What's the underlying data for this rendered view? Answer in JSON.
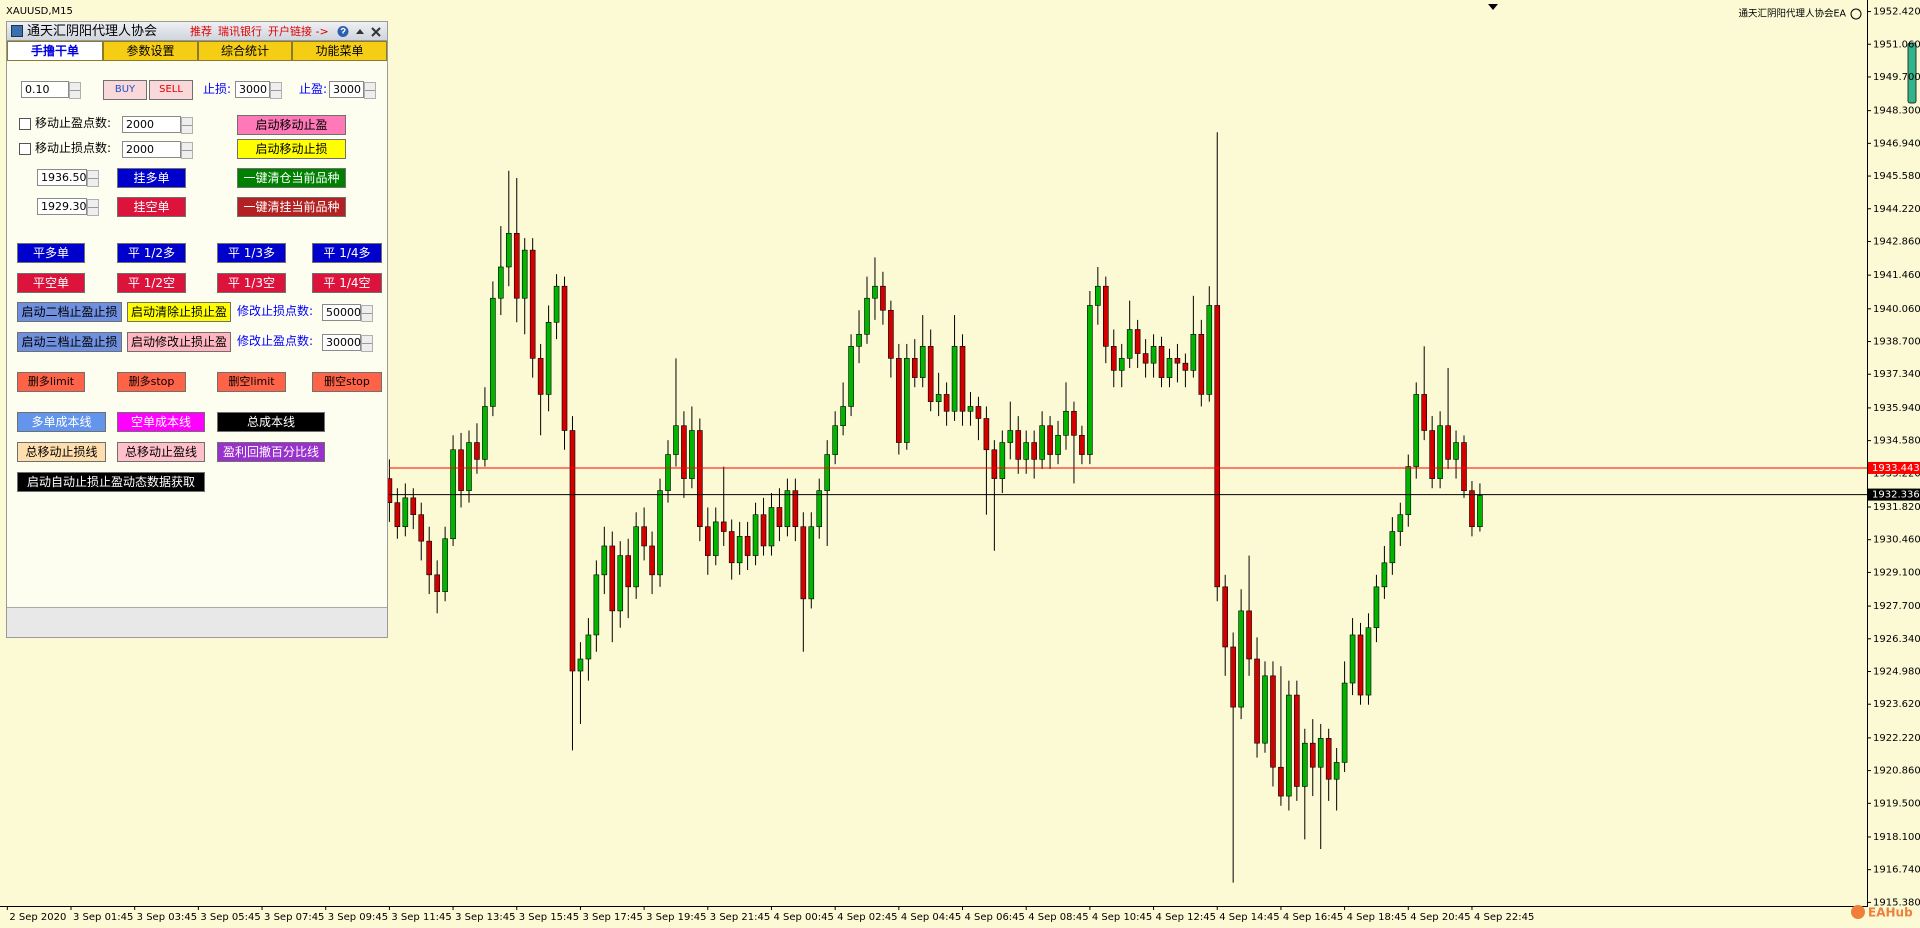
{
  "window": {
    "title": "XAUUSD,M15",
    "ea_label": "通天汇阴阳代理人协会EA",
    "watermark": "EAHub"
  },
  "panel": {
    "title": "通天汇阴阳代理人协会",
    "links": [
      "推荐",
      "瑞讯银行",
      "开户链接 ->"
    ],
    "tabs": [
      "手撸干单",
      "参数设置",
      "综合统计",
      "功能菜单"
    ],
    "lot": "0.10",
    "buy": "BUY",
    "sell": "SELL",
    "sl_label": "止损:",
    "sl": "3000",
    "tp_label": "止盈:",
    "tp": "3000",
    "trail_tp_label": "移动止盈点数:",
    "trail_tp": "2000",
    "trail_tp_button": "启动移动止盈",
    "trail_sl_label": "移动止损点数:",
    "trail_sl": "2000",
    "trail_sl_button": "启动移动止损",
    "buy_price": "1936.500",
    "buy_pending": "挂多单",
    "close_all": "一键清仓当前品种",
    "sell_price": "1929.300",
    "sell_pending": "挂空单",
    "clear_pending": "一键清挂当前品种",
    "close_buy": [
      "平多单",
      "平 1/2多",
      "平 1/3多",
      "平 1/4多"
    ],
    "close_sell": [
      "平空单",
      "平 1/2空",
      "平 1/3空",
      "平 1/4空"
    ],
    "level2": "启动二档止盈止损",
    "clear_sltp": "启动清除止损止盈",
    "mod_sl_label": "修改止损点数:",
    "mod_sl": "50000",
    "level3": "启动三档止盈止损",
    "modify_sltp": "启动修改止损止盈",
    "mod_tp_label": "修改止盈点数:",
    "mod_tp": "30000",
    "delete": [
      "删多limit",
      "删多stop",
      "删空limit",
      "删空stop"
    ],
    "lines_row1": [
      "多单成本线",
      "空单成本线",
      "总成本线"
    ],
    "lines_row2": [
      "总移动止损线",
      "总移动止盈线",
      "盈利回撤百分比线"
    ],
    "auto": "启动自动止损止盈动态数据获取"
  },
  "chart": {
    "type": "candlestick",
    "up_color": "#00b400",
    "down_color": "#d40000",
    "ylim": [
      1915.23,
      1952.9
    ],
    "yticks": [
      {
        "value": 1952.42,
        "label": "1952.420"
      },
      {
        "value": 1951.06,
        "label": "1951.060"
      },
      {
        "value": 1949.7,
        "label": "1949.700"
      },
      {
        "value": 1948.3,
        "label": "1948.300"
      },
      {
        "value": 1946.94,
        "label": "1946.940"
      },
      {
        "value": 1945.58,
        "label": "1945.580"
      },
      {
        "value": 1944.22,
        "label": "1944.220"
      },
      {
        "value": 1942.86,
        "label": "1942.860"
      },
      {
        "value": 1941.46,
        "label": "1941.460"
      },
      {
        "value": 1940.06,
        "label": "1940.060"
      },
      {
        "value": 1938.7,
        "label": "1938.700"
      },
      {
        "value": 1937.34,
        "label": "1937.340"
      },
      {
        "value": 1935.94,
        "label": "1935.940"
      },
      {
        "value": 1934.58,
        "label": "1934.580"
      },
      {
        "value": 1933.22,
        "label": "1933.220"
      },
      {
        "value": 1931.82,
        "label": "1931.820"
      },
      {
        "value": 1930.46,
        "label": "1930.460"
      },
      {
        "value": 1929.1,
        "label": "1929.100"
      },
      {
        "value": 1927.7,
        "label": "1927.700"
      },
      {
        "value": 1926.34,
        "label": "1926.340"
      },
      {
        "value": 1924.98,
        "label": "1924.980"
      },
      {
        "value": 1923.62,
        "label": "1923.620"
      },
      {
        "value": 1922.22,
        "label": "1922.220"
      },
      {
        "value": 1920.86,
        "label": "1920.860"
      },
      {
        "value": 1919.5,
        "label": "1919.500"
      },
      {
        "value": 1918.1,
        "label": "1918.100"
      },
      {
        "value": 1916.74,
        "label": "1916.740"
      },
      {
        "value": 1915.38,
        "label": "1915.380"
      }
    ],
    "x_labels": [
      "2 Sep 2020",
      "3 Sep 01:45",
      "3 Sep 03:45",
      "3 Sep 05:45",
      "3 Sep 07:45",
      "3 Sep 09:45",
      "3 Sep 11:45",
      "3 Sep 13:45",
      "3 Sep 15:45",
      "3 Sep 17:45",
      "3 Sep 19:45",
      "3 Sep 21:45",
      "4 Sep 00:45",
      "4 Sep 02:45",
      "4 Sep 04:45",
      "4 Sep 06:45",
      "4 Sep 08:45",
      "4 Sep 10:45",
      "4 Sep 12:45",
      "4 Sep 14:45",
      "4 Sep 16:45",
      "4 Sep 18:45",
      "4 Sep 20:45",
      "4 Sep 22:45"
    ],
    "lines": [
      {
        "value": 1933.443,
        "color": "#ff0000"
      },
      {
        "value": 1932.336,
        "color": "#000000"
      }
    ],
    "candles": [
      [
        1933.0,
        1933.8,
        1931.2,
        1932.0
      ],
      [
        1932.0,
        1932.6,
        1930.5,
        1931.0
      ],
      [
        1931.0,
        1932.8,
        1930.6,
        1932.2
      ],
      [
        1932.2,
        1932.6,
        1930.9,
        1931.5
      ],
      [
        1931.5,
        1932.0,
        1929.6,
        1930.4
      ],
      [
        1930.4,
        1931.0,
        1928.2,
        1929.0
      ],
      [
        1929.0,
        1929.6,
        1927.4,
        1928.3
      ],
      [
        1928.3,
        1931.0,
        1927.9,
        1930.5
      ],
      [
        1930.5,
        1934.8,
        1930.2,
        1934.2
      ],
      [
        1934.2,
        1934.9,
        1931.8,
        1932.5
      ],
      [
        1932.5,
        1935.0,
        1932.0,
        1934.5
      ],
      [
        1934.5,
        1935.3,
        1933.2,
        1933.8
      ],
      [
        1933.8,
        1936.8,
        1933.5,
        1936.0
      ],
      [
        1936.0,
        1941.2,
        1935.6,
        1940.5
      ],
      [
        1940.5,
        1943.5,
        1939.8,
        1941.8
      ],
      [
        1941.8,
        1945.8,
        1941.0,
        1943.2
      ],
      [
        1943.2,
        1945.5,
        1939.5,
        1940.5
      ],
      [
        1940.5,
        1943.0,
        1939.0,
        1942.5
      ],
      [
        1942.5,
        1943.0,
        1937.2,
        1938.0
      ],
      [
        1938.0,
        1938.6,
        1934.8,
        1936.5
      ],
      [
        1936.5,
        1940.2,
        1935.8,
        1939.5
      ],
      [
        1939.5,
        1941.5,
        1938.8,
        1941.0
      ],
      [
        1941.0,
        1941.4,
        1934.2,
        1935.0
      ],
      [
        1935.0,
        1935.6,
        1921.7,
        1925.0
      ],
      [
        1925.0,
        1926.2,
        1922.8,
        1925.5
      ],
      [
        1925.5,
        1927.2,
        1924.6,
        1926.5
      ],
      [
        1926.5,
        1929.6,
        1925.8,
        1929.0
      ],
      [
        1929.0,
        1931.0,
        1928.2,
        1930.2
      ],
      [
        1930.2,
        1930.8,
        1926.2,
        1927.5
      ],
      [
        1927.5,
        1930.4,
        1926.8,
        1929.8
      ],
      [
        1929.8,
        1930.5,
        1927.2,
        1928.5
      ],
      [
        1928.5,
        1931.6,
        1928.0,
        1931.0
      ],
      [
        1931.0,
        1931.8,
        1929.6,
        1930.2
      ],
      [
        1930.2,
        1930.8,
        1928.2,
        1929.0
      ],
      [
        1929.0,
        1933.0,
        1928.5,
        1932.5
      ],
      [
        1932.5,
        1934.6,
        1932.0,
        1934.0
      ],
      [
        1934.0,
        1938.0,
        1933.5,
        1935.2
      ],
      [
        1935.2,
        1935.8,
        1932.2,
        1933.0
      ],
      [
        1933.0,
        1936.0,
        1932.6,
        1935.0
      ],
      [
        1935.0,
        1935.5,
        1930.4,
        1931.0
      ],
      [
        1931.0,
        1931.8,
        1929.0,
        1929.8
      ],
      [
        1929.8,
        1931.8,
        1929.4,
        1931.2
      ],
      [
        1931.2,
        1933.5,
        1930.2,
        1930.8
      ],
      [
        1930.8,
        1931.3,
        1928.8,
        1929.5
      ],
      [
        1929.5,
        1931.2,
        1929.0,
        1930.6
      ],
      [
        1930.6,
        1931.2,
        1929.2,
        1929.8
      ],
      [
        1929.8,
        1932.0,
        1929.4,
        1931.5
      ],
      [
        1931.5,
        1932.2,
        1929.8,
        1930.2
      ],
      [
        1930.2,
        1932.4,
        1929.8,
        1931.8
      ],
      [
        1931.8,
        1932.6,
        1930.4,
        1931.0
      ],
      [
        1931.0,
        1933.0,
        1930.6,
        1932.5
      ],
      [
        1932.5,
        1933.0,
        1930.4,
        1931.0
      ],
      [
        1931.0,
        1931.6,
        1925.8,
        1928.0
      ],
      [
        1928.0,
        1931.6,
        1927.6,
        1931.0
      ],
      [
        1931.0,
        1933.0,
        1930.5,
        1932.5
      ],
      [
        1932.5,
        1934.6,
        1930.2,
        1934.0
      ],
      [
        1934.0,
        1935.8,
        1933.6,
        1935.2
      ],
      [
        1935.2,
        1937.0,
        1934.8,
        1936.0
      ],
      [
        1936.0,
        1939.0,
        1935.6,
        1938.5
      ],
      [
        1938.5,
        1940.0,
        1937.8,
        1939.0
      ],
      [
        1939.0,
        1941.4,
        1938.6,
        1940.5
      ],
      [
        1940.5,
        1942.2,
        1939.6,
        1941.0
      ],
      [
        1941.0,
        1941.6,
        1939.4,
        1940.0
      ],
      [
        1940.0,
        1940.4,
        1937.2,
        1938.0
      ],
      [
        1938.0,
        1938.6,
        1934.0,
        1934.5
      ],
      [
        1934.5,
        1938.6,
        1934.2,
        1938.0
      ],
      [
        1938.0,
        1938.8,
        1936.8,
        1937.2
      ],
      [
        1937.2,
        1939.8,
        1936.8,
        1938.5
      ],
      [
        1938.5,
        1939.2,
        1935.8,
        1936.2
      ],
      [
        1936.2,
        1937.4,
        1935.6,
        1936.5
      ],
      [
        1936.5,
        1937.0,
        1935.2,
        1935.8
      ],
      [
        1935.8,
        1939.8,
        1935.4,
        1938.5
      ],
      [
        1938.5,
        1939.0,
        1935.2,
        1935.8
      ],
      [
        1935.8,
        1936.6,
        1935.2,
        1936.0
      ],
      [
        1936.0,
        1936.4,
        1934.6,
        1935.5
      ],
      [
        1935.5,
        1936.0,
        1931.5,
        1934.2
      ],
      [
        1934.2,
        1934.6,
        1930.0,
        1933.0
      ],
      [
        1933.0,
        1935.0,
        1932.4,
        1934.5
      ],
      [
        1934.5,
        1936.2,
        1933.8,
        1935.0
      ],
      [
        1935.0,
        1935.6,
        1933.2,
        1933.8
      ],
      [
        1933.8,
        1935.0,
        1933.2,
        1934.5
      ],
      [
        1934.5,
        1935.0,
        1933.0,
        1933.8
      ],
      [
        1933.8,
        1935.8,
        1933.4,
        1935.2
      ],
      [
        1935.2,
        1935.6,
        1933.4,
        1934.0
      ],
      [
        1934.0,
        1935.4,
        1933.6,
        1934.8
      ],
      [
        1934.8,
        1937.0,
        1934.2,
        1935.8
      ],
      [
        1935.8,
        1936.2,
        1932.8,
        1934.8
      ],
      [
        1934.8,
        1935.2,
        1933.6,
        1934.0
      ],
      [
        1934.0,
        1940.8,
        1933.6,
        1940.2
      ],
      [
        1940.2,
        1941.8,
        1939.4,
        1941.0
      ],
      [
        1941.0,
        1941.4,
        1937.8,
        1938.5
      ],
      [
        1938.5,
        1939.2,
        1936.8,
        1937.5
      ],
      [
        1937.5,
        1938.6,
        1936.8,
        1938.0
      ],
      [
        1938.0,
        1940.4,
        1937.6,
        1939.2
      ],
      [
        1939.2,
        1939.6,
        1937.6,
        1938.2
      ],
      [
        1938.2,
        1938.8,
        1937.2,
        1937.8
      ],
      [
        1937.8,
        1939.0,
        1937.2,
        1938.5
      ],
      [
        1938.5,
        1938.9,
        1936.8,
        1937.2
      ],
      [
        1937.2,
        1938.4,
        1936.8,
        1938.0
      ],
      [
        1938.0,
        1938.6,
        1937.0,
        1937.8
      ],
      [
        1937.8,
        1938.2,
        1936.8,
        1937.5
      ],
      [
        1937.5,
        1940.6,
        1937.2,
        1939.0
      ],
      [
        1939.0,
        1939.6,
        1936.0,
        1936.5
      ],
      [
        1936.5,
        1941.0,
        1936.2,
        1940.2
      ],
      [
        1940.2,
        1947.4,
        1927.9,
        1928.5
      ],
      [
        1928.5,
        1929.0,
        1924.8,
        1926.0
      ],
      [
        1926.0,
        1926.6,
        1916.2,
        1923.5
      ],
      [
        1923.5,
        1928.4,
        1923.0,
        1927.5
      ],
      [
        1927.5,
        1929.8,
        1924.8,
        1925.5
      ],
      [
        1925.5,
        1926.4,
        1921.4,
        1922.0
      ],
      [
        1922.0,
        1925.4,
        1921.6,
        1924.8
      ],
      [
        1924.8,
        1925.4,
        1920.2,
        1921.0
      ],
      [
        1921.0,
        1925.2,
        1919.4,
        1919.8
      ],
      [
        1919.8,
        1924.6,
        1919.2,
        1924.0
      ],
      [
        1924.0,
        1924.6,
        1919.6,
        1920.2
      ],
      [
        1920.2,
        1922.6,
        1918.0,
        1922.0
      ],
      [
        1922.0,
        1923.0,
        1919.8,
        1921.0
      ],
      [
        1921.0,
        1922.8,
        1917.6,
        1922.2
      ],
      [
        1922.2,
        1922.6,
        1919.6,
        1920.5
      ],
      [
        1920.5,
        1921.8,
        1919.2,
        1921.2
      ],
      [
        1921.2,
        1925.4,
        1920.8,
        1924.5
      ],
      [
        1924.5,
        1927.2,
        1924.0,
        1926.5
      ],
      [
        1926.5,
        1927.0,
        1923.6,
        1924.0
      ],
      [
        1924.0,
        1927.4,
        1923.6,
        1926.8
      ],
      [
        1926.8,
        1929.0,
        1926.2,
        1928.5
      ],
      [
        1928.5,
        1930.2,
        1928.0,
        1929.5
      ],
      [
        1929.5,
        1931.4,
        1929.0,
        1930.8
      ],
      [
        1930.8,
        1932.0,
        1930.2,
        1931.5
      ],
      [
        1931.5,
        1934.0,
        1931.0,
        1933.5
      ],
      [
        1933.5,
        1937.0,
        1933.0,
        1936.5
      ],
      [
        1936.5,
        1938.5,
        1934.6,
        1935.0
      ],
      [
        1935.0,
        1935.6,
        1932.6,
        1933.0
      ],
      [
        1933.0,
        1935.8,
        1932.6,
        1935.2
      ],
      [
        1935.2,
        1937.6,
        1933.4,
        1933.8
      ],
      [
        1933.8,
        1935.0,
        1933.0,
        1934.5
      ],
      [
        1934.5,
        1934.8,
        1932.2,
        1932.5
      ],
      [
        1932.5,
        1932.9,
        1930.6,
        1931.0
      ],
      [
        1931.0,
        1932.8,
        1930.8,
        1932.3
      ]
    ]
  }
}
